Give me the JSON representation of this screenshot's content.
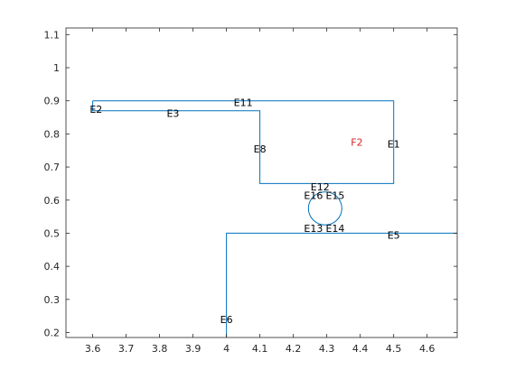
{
  "chart_data": {
    "type": "line",
    "title": "",
    "xlabel": "",
    "ylabel": "",
    "xlim": [
      3.52,
      4.69
    ],
    "ylim": [
      0.185,
      1.12
    ],
    "xticks": [
      "3.6",
      "3.7",
      "3.8",
      "3.9",
      "4",
      "4.1",
      "4.2",
      "4.3",
      "4.4",
      "4.5",
      "4.6"
    ],
    "xtick_values": [
      3.6,
      3.7,
      3.8,
      3.9,
      4.0,
      4.1,
      4.2,
      4.3,
      4.4,
      4.5,
      4.6
    ],
    "yticks": [
      "0.2",
      "0.3",
      "0.4",
      "0.5",
      "0.6",
      "0.7",
      "0.8",
      "0.9",
      "1",
      "1.1"
    ],
    "ytick_values": [
      0.2,
      0.3,
      0.4,
      0.5,
      0.6,
      0.7,
      0.8,
      0.9,
      1.0,
      1.1
    ],
    "grid": false,
    "line_color": "#0072BD",
    "series": [
      {
        "values": [
          [
            3.6,
            0.9
          ],
          [
            4.5,
            0.9
          ],
          [
            4.5,
            0.65
          ],
          [
            4.1,
            0.65
          ],
          [
            4.1,
            0.87
          ],
          [
            3.6,
            0.87
          ],
          [
            3.6,
            0.9
          ]
        ]
      },
      {
        "values": [
          [
            4.0,
            0.185
          ],
          [
            4.0,
            0.5
          ],
          [
            4.69,
            0.5
          ]
        ]
      }
    ],
    "circle": {
      "cx": 4.295,
      "cy": 0.575,
      "r": 0.05
    },
    "annotations": [
      {
        "text": "E2",
        "x": 3.61,
        "y": 0.875,
        "color": "#000000"
      },
      {
        "text": "E3",
        "x": 3.84,
        "y": 0.862,
        "color": "#000000"
      },
      {
        "text": "E11",
        "x": 4.05,
        "y": 0.895,
        "color": "#000000"
      },
      {
        "text": "E8",
        "x": 4.1,
        "y": 0.755,
        "color": "#000000"
      },
      {
        "text": "F2",
        "x": 4.39,
        "y": 0.775,
        "color": "#d62728"
      },
      {
        "text": "E1",
        "x": 4.5,
        "y": 0.77,
        "color": "#000000"
      },
      {
        "text": "E12",
        "x": 4.28,
        "y": 0.64,
        "color": "#000000"
      },
      {
        "text": "E16",
        "x": 4.26,
        "y": 0.615,
        "color": "#000000"
      },
      {
        "text": "E15",
        "x": 4.325,
        "y": 0.615,
        "color": "#000000"
      },
      {
        "text": "E13",
        "x": 4.26,
        "y": 0.515,
        "color": "#000000"
      },
      {
        "text": "E14",
        "x": 4.325,
        "y": 0.515,
        "color": "#000000"
      },
      {
        "text": "E5",
        "x": 4.5,
        "y": 0.495,
        "color": "#000000"
      },
      {
        "text": "E6",
        "x": 4.0,
        "y": 0.24,
        "color": "#000000"
      }
    ]
  }
}
